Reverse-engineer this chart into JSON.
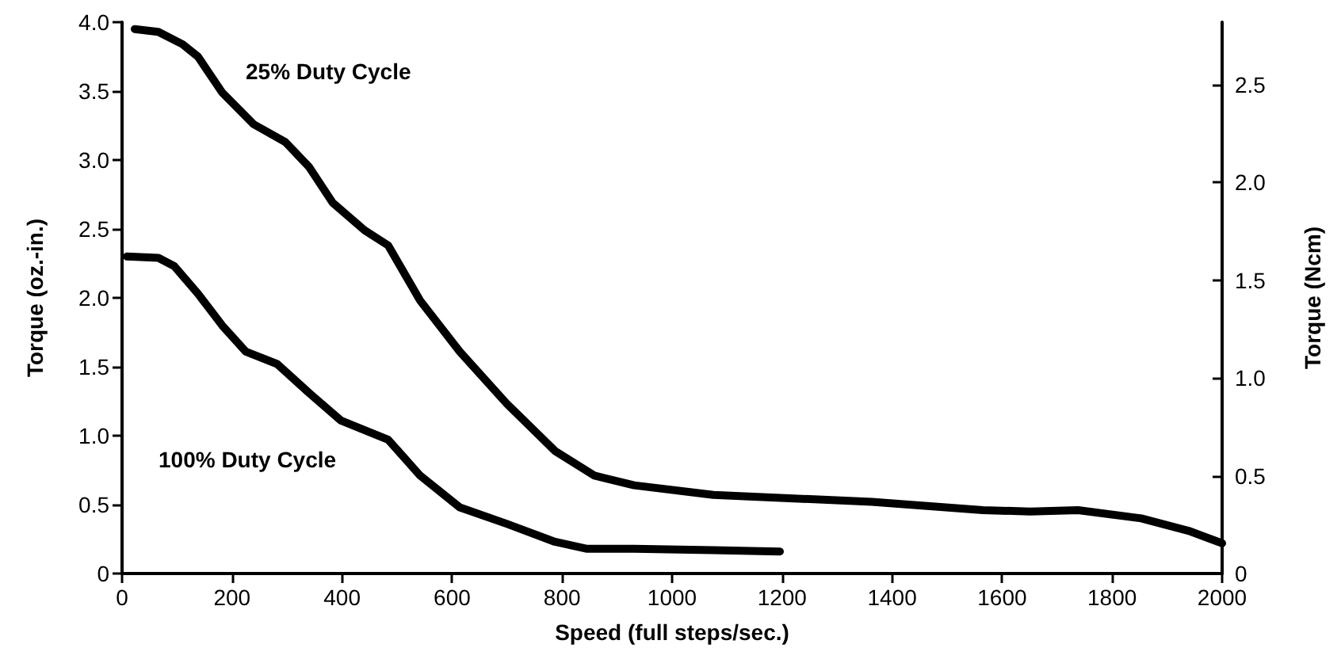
{
  "chart_data": {
    "type": "line",
    "xlabel": "Speed (full steps/sec.)",
    "ylabel": "Torque (oz.-in.)",
    "y2label": "Torque (Ncm)",
    "xlim": [
      0,
      2000
    ],
    "xticks": [
      0,
      200,
      400,
      600,
      800,
      1000,
      1200,
      1400,
      1600,
      1800,
      2000
    ],
    "ylim": [
      0,
      4.0
    ],
    "yticks": [
      0,
      {
        "value": 0.5,
        "label": "0.5"
      },
      {
        "value": 1,
        "label": "1.0"
      },
      {
        "value": 1.5,
        "label": "1.5"
      },
      {
        "value": 2,
        "label": "2.0"
      },
      {
        "value": 2.5,
        "label": "2.5"
      },
      {
        "value": 3,
        "label": "3.0"
      },
      {
        "value": 3.5,
        "label": "3.5"
      },
      {
        "value": 4,
        "label": "4.0"
      }
    ],
    "y2lim": [
      0,
      2.82
    ],
    "y2ticks": [
      0,
      {
        "value": 0.5,
        "label": "0.5"
      },
      {
        "value": 1,
        "label": "1.0"
      },
      {
        "value": 1.5,
        "label": "1.5"
      },
      {
        "value": 2,
        "label": "2.0"
      },
      {
        "value": 2.5,
        "label": "2.5"
      }
    ],
    "grid": false,
    "legend": false,
    "marker": "none",
    "line_style": "solid",
    "series": [
      {
        "name": "25% Duty Cycle",
        "color": "#000000",
        "x": [
          23,
          66,
          110,
          138,
          182,
          239,
          297,
          340,
          383,
          441,
          484,
          542,
          614,
          700,
          787,
          859,
          931,
          1075,
          1363,
          1565,
          1651,
          1738,
          1853,
          1939,
          2000
        ],
        "values": [
          3.95,
          3.93,
          3.84,
          3.75,
          3.49,
          3.26,
          3.13,
          2.95,
          2.69,
          2.49,
          2.38,
          1.98,
          1.61,
          1.23,
          0.89,
          0.71,
          0.64,
          0.57,
          0.52,
          0.46,
          0.45,
          0.46,
          0.4,
          0.31,
          0.22
        ]
      },
      {
        "name": "100% Duty Cycle",
        "color": "#000000",
        "x": [
          9,
          66,
          95,
          138,
          182,
          225,
          282,
          340,
          398,
          484,
          542,
          614,
          700,
          787,
          844,
          931,
          1075,
          1196
        ],
        "values": [
          2.3,
          2.29,
          2.23,
          2.03,
          1.8,
          1.61,
          1.52,
          1.31,
          1.11,
          0.97,
          0.71,
          0.48,
          0.36,
          0.23,
          0.18,
          0.18,
          0.17,
          0.16
        ]
      }
    ]
  }
}
